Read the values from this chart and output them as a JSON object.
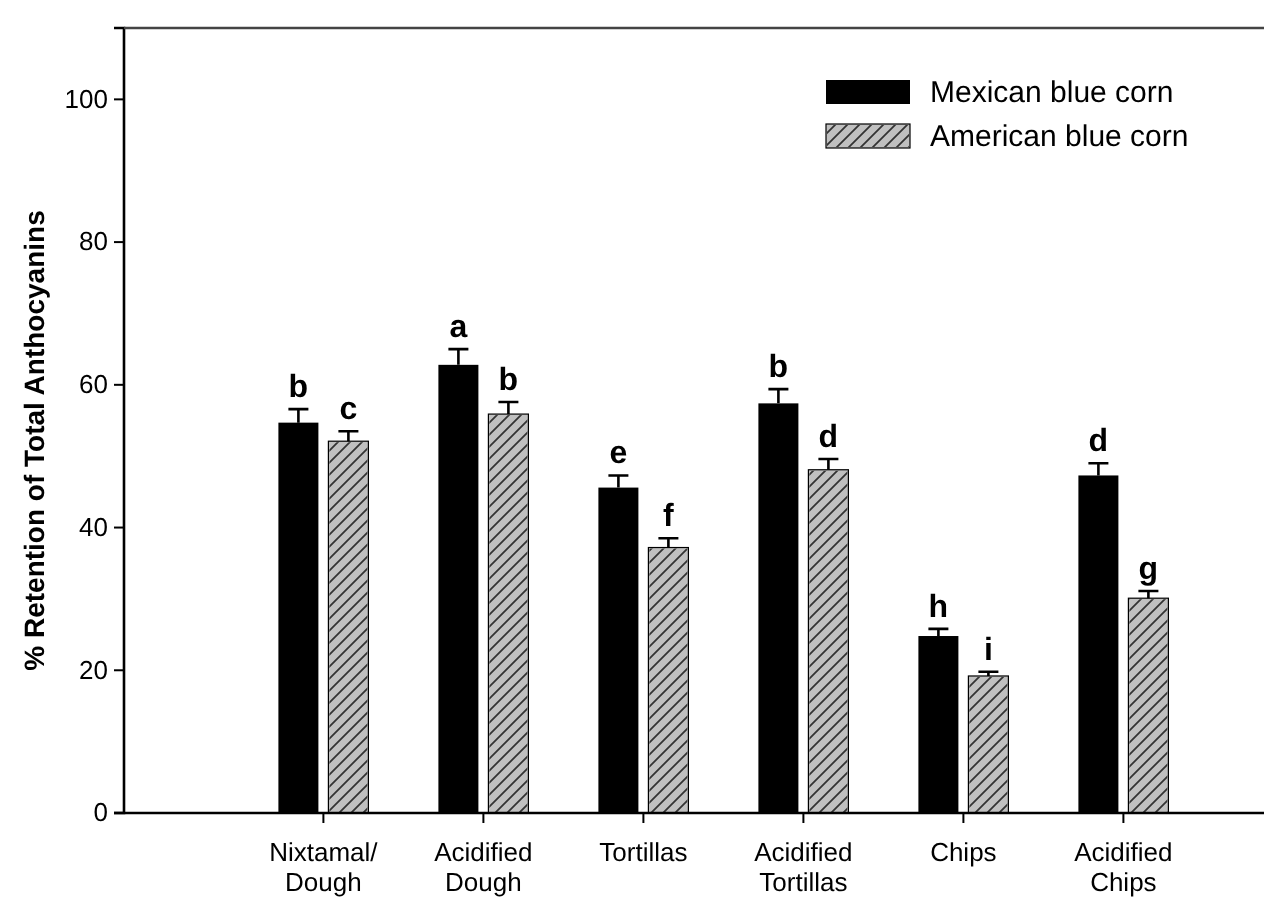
{
  "chart_data": {
    "type": "bar",
    "ylabel": "% Retention of Total Anthocyanins",
    "categories": [
      "Nixtamal/ Dough",
      "Acidified Dough",
      "Tortillas",
      "Acidified Tortillas",
      "Chips",
      "Acidified Chips"
    ],
    "series": [
      {
        "name": "Mexican blue corn",
        "color": "#000000",
        "values": [
          54.7,
          62.8,
          45.6,
          57.4,
          24.8,
          47.3
        ],
        "errors": [
          1.9,
          2.2,
          1.7,
          2.0,
          1.0,
          1.7
        ],
        "value_labels": [
          "b",
          "a",
          "e",
          "b",
          "h",
          "d"
        ]
      },
      {
        "name": "American blue corn",
        "color": "#c0c0c0",
        "values": [
          52.1,
          55.9,
          37.2,
          48.1,
          19.2,
          30.1
        ],
        "errors": [
          1.4,
          1.7,
          1.3,
          1.5,
          0.6,
          1.0
        ],
        "value_labels": [
          "c",
          "b",
          "f",
          "d",
          "i",
          "g"
        ]
      }
    ],
    "ylim": [
      0,
      110
    ],
    "yticks": [
      0,
      20,
      40,
      60,
      80,
      100
    ],
    "grid": false,
    "legend": "top right"
  }
}
